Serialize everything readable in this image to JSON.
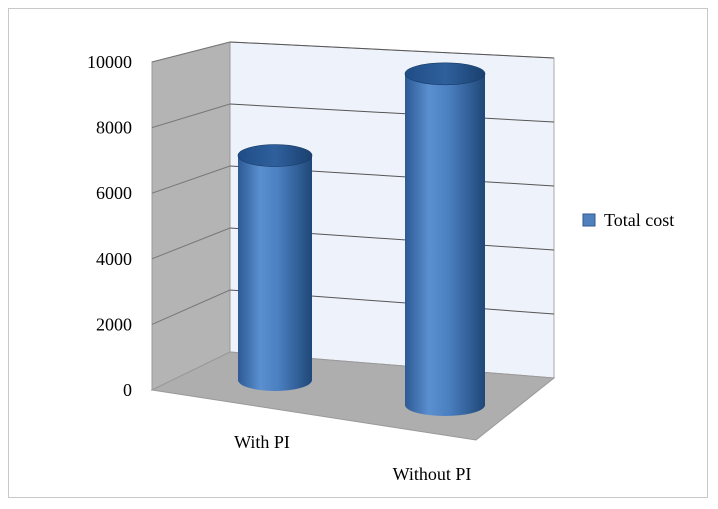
{
  "chart_data": {
    "type": "bar",
    "style": "3d-cylinder",
    "categories": [
      "With PI",
      "Without PI"
    ],
    "series": [
      {
        "name": "Total cost",
        "values": [
          6800,
          9600
        ],
        "color": "#4f81bd"
      }
    ],
    "yticks": [
      "0",
      "2000",
      "4000",
      "6000",
      "8000",
      "10000"
    ],
    "ylim": [
      0,
      10000
    ],
    "grid": true,
    "legend_position": "right"
  }
}
